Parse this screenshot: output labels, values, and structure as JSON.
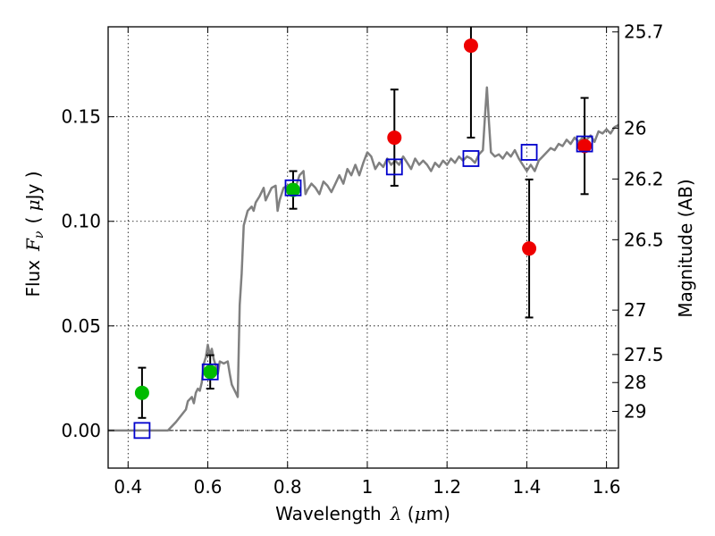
{
  "chart_data": {
    "type": "scatter",
    "xlabel": {
      "pre": "Wavelength",
      "sym": "λ",
      "unit_open": " (",
      "unit_mu": "μ",
      "unit_rest": "m)"
    },
    "ylabel": {
      "pre": "Flux",
      "sym": "F",
      "sub": "ν",
      "unit_open": "( ",
      "unit_mu": "μ",
      "unit_rest": "Jy )"
    },
    "y2label": "Magnitude (AB)",
    "xlim": [
      0.35,
      1.63
    ],
    "ylim": [
      -0.018,
      0.193
    ],
    "grid": true,
    "x_ticks": [
      {
        "value": 0.4,
        "label": "0.4"
      },
      {
        "value": 0.6,
        "label": "0.6"
      },
      {
        "value": 0.8,
        "label": "0.8"
      },
      {
        "value": 1.0,
        "label": "1"
      },
      {
        "value": 1.2,
        "label": "1.2"
      },
      {
        "value": 1.4,
        "label": "1.4"
      },
      {
        "value": 1.6,
        "label": "1.6"
      }
    ],
    "y_ticks": [
      {
        "value": 0.0,
        "label": "0.00"
      },
      {
        "value": 0.05,
        "label": "0.05"
      },
      {
        "value": 0.1,
        "label": "0.10"
      },
      {
        "value": 0.15,
        "label": "0.15"
      }
    ],
    "mag_ticks": [
      {
        "mag": 25.7,
        "label": "25.7"
      },
      {
        "mag": 26.0,
        "label": "26"
      },
      {
        "mag": 26.2,
        "label": "26.2"
      },
      {
        "mag": 26.5,
        "label": "26.5"
      },
      {
        "mag": 27.0,
        "label": "27"
      },
      {
        "mag": 27.5,
        "label": "27.5"
      },
      {
        "mag": 28.0,
        "label": "28"
      },
      {
        "mag": 29.0,
        "label": "29"
      }
    ],
    "model_sed": {
      "color": "#808080",
      "points": [
        [
          0.35,
          0.0
        ],
        [
          0.5,
          0.0
        ],
        [
          0.52,
          0.004
        ],
        [
          0.545,
          0.01
        ],
        [
          0.55,
          0.014
        ],
        [
          0.56,
          0.016
        ],
        [
          0.565,
          0.013
        ],
        [
          0.57,
          0.018
        ],
        [
          0.575,
          0.02
        ],
        [
          0.58,
          0.019
        ],
        [
          0.585,
          0.023
        ],
        [
          0.59,
          0.032
        ],
        [
          0.595,
          0.035
        ],
        [
          0.6,
          0.041
        ],
        [
          0.605,
          0.036
        ],
        [
          0.61,
          0.039
        ],
        [
          0.615,
          0.034
        ],
        [
          0.62,
          0.031
        ],
        [
          0.625,
          0.027
        ],
        [
          0.63,
          0.033
        ],
        [
          0.64,
          0.032
        ],
        [
          0.65,
          0.033
        ],
        [
          0.655,
          0.027
        ],
        [
          0.66,
          0.022
        ],
        [
          0.665,
          0.02
        ],
        [
          0.67,
          0.018
        ],
        [
          0.675,
          0.016
        ],
        [
          0.68,
          0.06
        ],
        [
          0.685,
          0.075
        ],
        [
          0.69,
          0.098
        ],
        [
          0.7,
          0.105
        ],
        [
          0.71,
          0.107
        ],
        [
          0.715,
          0.105
        ],
        [
          0.72,
          0.109
        ],
        [
          0.73,
          0.112
        ],
        [
          0.74,
          0.116
        ],
        [
          0.745,
          0.11
        ],
        [
          0.75,
          0.112
        ],
        [
          0.76,
          0.116
        ],
        [
          0.77,
          0.117
        ],
        [
          0.775,
          0.105
        ],
        [
          0.78,
          0.11
        ],
        [
          0.79,
          0.116
        ],
        [
          0.8,
          0.117
        ],
        [
          0.81,
          0.118
        ],
        [
          0.82,
          0.116
        ],
        [
          0.83,
          0.122
        ],
        [
          0.84,
          0.124
        ],
        [
          0.845,
          0.113
        ],
        [
          0.85,
          0.115
        ],
        [
          0.86,
          0.118
        ],
        [
          0.87,
          0.116
        ],
        [
          0.88,
          0.113
        ],
        [
          0.89,
          0.119
        ],
        [
          0.9,
          0.117
        ],
        [
          0.91,
          0.114
        ],
        [
          0.92,
          0.118
        ],
        [
          0.93,
          0.122
        ],
        [
          0.94,
          0.118
        ],
        [
          0.95,
          0.125
        ],
        [
          0.96,
          0.122
        ],
        [
          0.97,
          0.127
        ],
        [
          0.98,
          0.122
        ],
        [
          0.99,
          0.128
        ],
        [
          1.0,
          0.133
        ],
        [
          1.01,
          0.131
        ],
        [
          1.02,
          0.125
        ],
        [
          1.03,
          0.128
        ],
        [
          1.04,
          0.126
        ],
        [
          1.05,
          0.13
        ],
        [
          1.06,
          0.127
        ],
        [
          1.07,
          0.129
        ],
        [
          1.08,
          0.127
        ],
        [
          1.09,
          0.131
        ],
        [
          1.1,
          0.128
        ],
        [
          1.11,
          0.125
        ],
        [
          1.12,
          0.13
        ],
        [
          1.13,
          0.127
        ],
        [
          1.14,
          0.129
        ],
        [
          1.15,
          0.127
        ],
        [
          1.16,
          0.124
        ],
        [
          1.17,
          0.128
        ],
        [
          1.18,
          0.126
        ],
        [
          1.19,
          0.129
        ],
        [
          1.2,
          0.127
        ],
        [
          1.21,
          0.13
        ],
        [
          1.22,
          0.128
        ],
        [
          1.23,
          0.131
        ],
        [
          1.24,
          0.129
        ],
        [
          1.25,
          0.131
        ],
        [
          1.26,
          0.13
        ],
        [
          1.27,
          0.128
        ],
        [
          1.28,
          0.132
        ],
        [
          1.29,
          0.134
        ],
        [
          1.295,
          0.15
        ],
        [
          1.3,
          0.164
        ],
        [
          1.305,
          0.148
        ],
        [
          1.31,
          0.133
        ],
        [
          1.32,
          0.131
        ],
        [
          1.33,
          0.132
        ],
        [
          1.34,
          0.13
        ],
        [
          1.35,
          0.133
        ],
        [
          1.36,
          0.131
        ],
        [
          1.37,
          0.134
        ],
        [
          1.38,
          0.13
        ],
        [
          1.39,
          0.127
        ],
        [
          1.4,
          0.124
        ],
        [
          1.41,
          0.127
        ],
        [
          1.42,
          0.124
        ],
        [
          1.43,
          0.129
        ],
        [
          1.44,
          0.131
        ],
        [
          1.45,
          0.133
        ],
        [
          1.46,
          0.135
        ],
        [
          1.47,
          0.134
        ],
        [
          1.48,
          0.137
        ],
        [
          1.49,
          0.136
        ],
        [
          1.5,
          0.139
        ],
        [
          1.51,
          0.137
        ],
        [
          1.52,
          0.14
        ],
        [
          1.53,
          0.138
        ],
        [
          1.54,
          0.14
        ],
        [
          1.55,
          0.139
        ],
        [
          1.56,
          0.141
        ],
        [
          1.57,
          0.138
        ],
        [
          1.58,
          0.143
        ],
        [
          1.59,
          0.142
        ],
        [
          1.6,
          0.144
        ],
        [
          1.61,
          0.142
        ],
        [
          1.62,
          0.145
        ],
        [
          1.63,
          0.146
        ]
      ]
    },
    "model_photometry": {
      "color": "#0000cc",
      "points": [
        {
          "x": 0.435,
          "y": 0.0
        },
        {
          "x": 0.606,
          "y": 0.028
        },
        {
          "x": 0.814,
          "y": 0.116
        },
        {
          "x": 1.068,
          "y": 0.126
        },
        {
          "x": 1.26,
          "y": 0.13
        },
        {
          "x": 1.406,
          "y": 0.133
        },
        {
          "x": 1.545,
          "y": 0.137
        }
      ]
    },
    "observed": [
      {
        "x": 0.435,
        "y": 0.018,
        "err": 0.012,
        "color": "#00bb00"
      },
      {
        "x": 0.606,
        "y": 0.028,
        "err": 0.008,
        "color": "#00bb00"
      },
      {
        "x": 0.814,
        "y": 0.115,
        "err": 0.009,
        "color": "#00bb00"
      },
      {
        "x": 1.068,
        "y": 0.14,
        "err": 0.023,
        "color": "#ee0000"
      },
      {
        "x": 1.26,
        "y": 0.184,
        "err": 0.044,
        "color": "#ee0000"
      },
      {
        "x": 1.406,
        "y": 0.087,
        "err": 0.033,
        "color": "#ee0000"
      },
      {
        "x": 1.545,
        "y": 0.136,
        "err": 0.023,
        "color": "#ee0000"
      }
    ]
  }
}
